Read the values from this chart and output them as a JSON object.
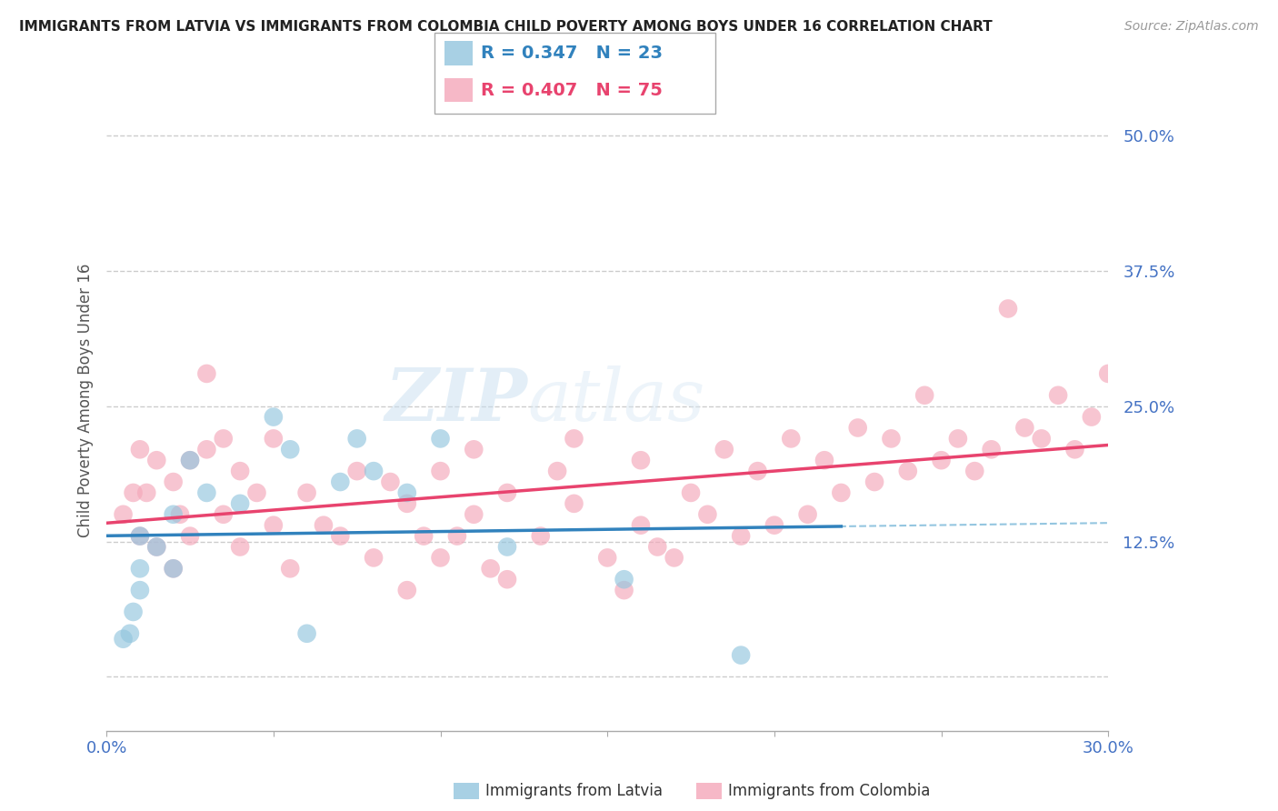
{
  "title": "IMMIGRANTS FROM LATVIA VS IMMIGRANTS FROM COLOMBIA CHILD POVERTY AMONG BOYS UNDER 16 CORRELATION CHART",
  "source": "Source: ZipAtlas.com",
  "ylabel": "Child Poverty Among Boys Under 16",
  "xlim": [
    0.0,
    0.3
  ],
  "ylim": [
    -0.05,
    0.56
  ],
  "xtick_positions": [
    0.0,
    0.05,
    0.1,
    0.15,
    0.2,
    0.25,
    0.3
  ],
  "xticklabels": [
    "0.0%",
    "",
    "",
    "",
    "",
    "",
    "30.0%"
  ],
  "ytick_positions": [
    0.0,
    0.125,
    0.25,
    0.375,
    0.5
  ],
  "ytick_labels": [
    "",
    "12.5%",
    "25.0%",
    "37.5%",
    "50.0%"
  ],
  "legend_r1": "R = 0.347",
  "legend_n1": "N = 23",
  "legend_r2": "R = 0.407",
  "legend_n2": "N = 75",
  "latvia_color": "#92c5de",
  "colombia_color": "#f4a7b9",
  "latvia_line_color": "#3182bd",
  "colombia_line_color": "#e8436e",
  "latvia_dashed_color": "#7ab8d9",
  "watermark_text": "ZIP",
  "watermark_text2": "atlas",
  "background_color": "#ffffff",
  "latvia_x": [
    0.005,
    0.007,
    0.008,
    0.01,
    0.01,
    0.01,
    0.015,
    0.02,
    0.02,
    0.025,
    0.03,
    0.04,
    0.05,
    0.055,
    0.06,
    0.07,
    0.075,
    0.08,
    0.09,
    0.1,
    0.12,
    0.155,
    0.19
  ],
  "latvia_y": [
    0.035,
    0.04,
    0.06,
    0.08,
    0.1,
    0.13,
    0.12,
    0.1,
    0.15,
    0.2,
    0.17,
    0.16,
    0.24,
    0.21,
    0.04,
    0.18,
    0.22,
    0.19,
    0.17,
    0.22,
    0.12,
    0.09,
    0.02
  ],
  "colombia_x": [
    0.005,
    0.008,
    0.01,
    0.01,
    0.012,
    0.015,
    0.015,
    0.02,
    0.02,
    0.022,
    0.025,
    0.025,
    0.03,
    0.03,
    0.035,
    0.035,
    0.04,
    0.04,
    0.045,
    0.05,
    0.05,
    0.055,
    0.06,
    0.065,
    0.07,
    0.075,
    0.08,
    0.085,
    0.09,
    0.09,
    0.095,
    0.1,
    0.1,
    0.105,
    0.11,
    0.11,
    0.115,
    0.12,
    0.12,
    0.13,
    0.135,
    0.14,
    0.14,
    0.15,
    0.155,
    0.16,
    0.16,
    0.165,
    0.17,
    0.175,
    0.18,
    0.185,
    0.19,
    0.195,
    0.2,
    0.205,
    0.21,
    0.215,
    0.22,
    0.225,
    0.23,
    0.235,
    0.24,
    0.245,
    0.25,
    0.255,
    0.26,
    0.265,
    0.27,
    0.275,
    0.28,
    0.285,
    0.29,
    0.295,
    0.3
  ],
  "colombia_y": [
    0.15,
    0.17,
    0.13,
    0.21,
    0.17,
    0.12,
    0.2,
    0.1,
    0.18,
    0.15,
    0.13,
    0.2,
    0.21,
    0.28,
    0.15,
    0.22,
    0.12,
    0.19,
    0.17,
    0.14,
    0.22,
    0.1,
    0.17,
    0.14,
    0.13,
    0.19,
    0.11,
    0.18,
    0.08,
    0.16,
    0.13,
    0.11,
    0.19,
    0.13,
    0.15,
    0.21,
    0.1,
    0.09,
    0.17,
    0.13,
    0.19,
    0.16,
    0.22,
    0.11,
    0.08,
    0.14,
    0.2,
    0.12,
    0.11,
    0.17,
    0.15,
    0.21,
    0.13,
    0.19,
    0.14,
    0.22,
    0.15,
    0.2,
    0.17,
    0.23,
    0.18,
    0.22,
    0.19,
    0.26,
    0.2,
    0.22,
    0.19,
    0.21,
    0.34,
    0.23,
    0.22,
    0.26,
    0.21,
    0.24,
    0.28
  ]
}
